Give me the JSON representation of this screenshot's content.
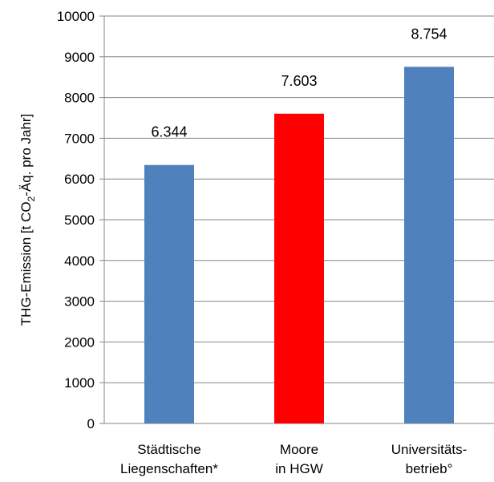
{
  "chart_data": {
    "type": "bar",
    "categories": [
      [
        "Städtische",
        "Liegenschaften*"
      ],
      [
        "Moore",
        "in HGW"
      ],
      [
        "Universitäts-",
        "betrieb°"
      ]
    ],
    "values": [
      6344,
      7603,
      8754
    ],
    "data_labels": [
      "6.344",
      "7.603",
      "8.754"
    ],
    "colors": [
      "#4F81BD",
      "#FF0000",
      "#4F81BD"
    ],
    "title": "",
    "xlabel": "",
    "ylabel": {
      "main": "THG-Emission  [t  CO",
      "subscript": "2",
      "rest": "-Äq. pro Jahr]"
    },
    "ylim": [
      0,
      10000
    ],
    "yticks": [
      0,
      1000,
      2000,
      3000,
      4000,
      5000,
      6000,
      7000,
      8000,
      9000,
      10000
    ],
    "grid": "horizontal",
    "gridColor": "#868686",
    "legend": "none"
  }
}
